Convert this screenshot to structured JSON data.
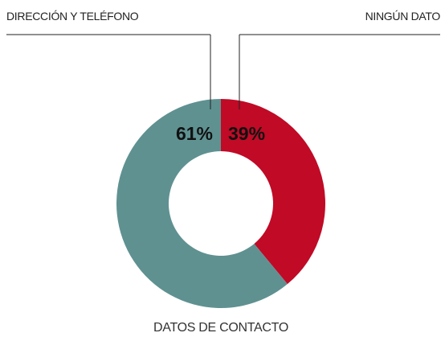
{
  "chart_data": {
    "type": "donut",
    "title": "DATOS DE CONTACTO",
    "categories": [
      "DIRECCIÓN Y TELÉFONO",
      "NINGÚN DATO"
    ],
    "values": [
      61,
      39
    ],
    "value_labels": [
      "61%",
      "39%"
    ],
    "colors": [
      "#5f9191",
      "#c00a26"
    ]
  }
}
